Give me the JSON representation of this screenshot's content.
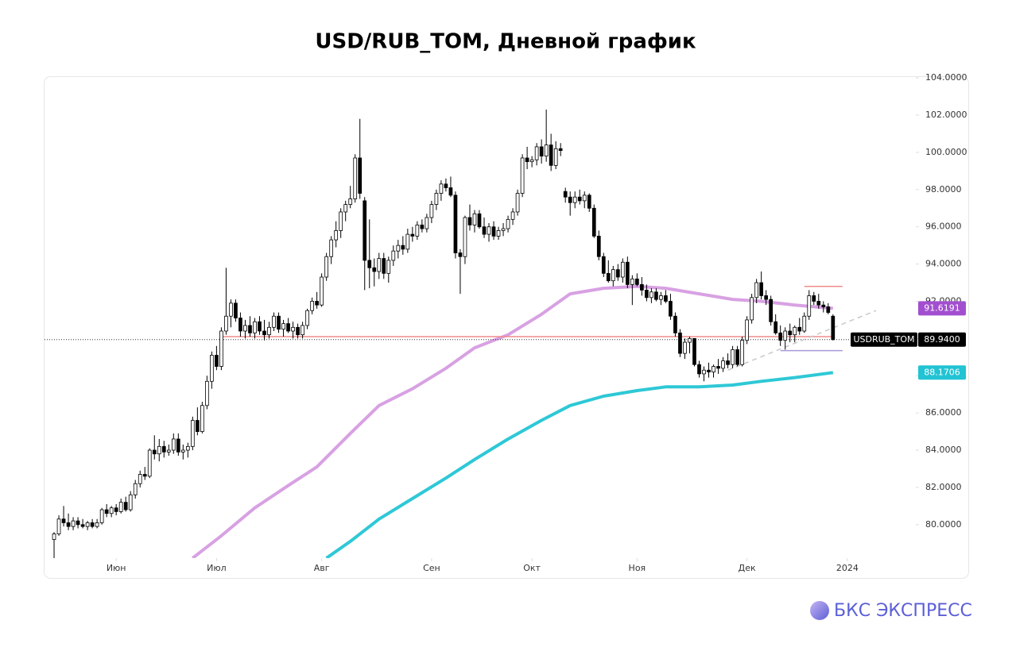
{
  "chart_data": {
    "type": "candlestick",
    "title": "USD/RUB_TOM, Дневной график",
    "logo": "БКС ЭКСПРЕСС",
    "xlim": [
      -2,
      180
    ],
    "ylim": [
      78.2,
      104.05
    ],
    "xticks": [
      {
        "value": 13,
        "label": "Июн"
      },
      {
        "value": 34,
        "label": "Июл"
      },
      {
        "value": 56,
        "label": "Авг"
      },
      {
        "value": 79,
        "label": "Сен"
      },
      {
        "value": 100,
        "label": "Окт"
      },
      {
        "value": 122,
        "label": "Ноя"
      },
      {
        "value": 145,
        "label": "Дек"
      },
      {
        "value": 166,
        "label": "2024"
      }
    ],
    "yticks": [
      {
        "value": 80,
        "label": "80.0000"
      },
      {
        "value": 82,
        "label": "82.0000"
      },
      {
        "value": 84,
        "label": "84.0000"
      },
      {
        "value": 86,
        "label": "86.0000"
      },
      {
        "value": 88,
        "label": "88.0000"
      },
      {
        "value": 90,
        "label": "90.0000"
      },
      {
        "value": 92,
        "label": "92.0000"
      },
      {
        "value": 94,
        "label": "94.0000"
      },
      {
        "value": 96,
        "label": "96.0000"
      },
      {
        "value": 98,
        "label": "98.0000"
      },
      {
        "value": 100,
        "label": "100.0000"
      },
      {
        "value": 102,
        "label": "102.0000"
      },
      {
        "value": 104,
        "label": "104.0000"
      }
    ],
    "up_color": "#ffffff",
    "down_color": "#000000",
    "candles": [
      [
        79.2,
        79.6,
        78.2,
        79.5
      ],
      [
        79.5,
        80.5,
        79.4,
        80.3
      ],
      [
        80.3,
        81.0,
        79.9,
        80.1
      ],
      [
        80.1,
        80.6,
        79.7,
        79.9
      ],
      [
        79.9,
        80.4,
        79.7,
        80.2
      ],
      [
        80.2,
        80.4,
        79.8,
        80.0
      ],
      [
        80.0,
        80.3,
        79.8,
        79.9
      ],
      [
        79.9,
        80.2,
        79.7,
        80.1
      ],
      [
        80.1,
        80.3,
        79.8,
        79.9
      ],
      [
        79.9,
        80.3,
        79.8,
        80.1
      ],
      [
        80.1,
        80.9,
        80.0,
        80.8
      ],
      [
        80.8,
        81.1,
        80.4,
        80.6
      ],
      [
        80.6,
        81.0,
        80.4,
        80.9
      ],
      [
        80.9,
        81.1,
        80.5,
        80.7
      ],
      [
        80.7,
        81.4,
        80.6,
        81.2
      ],
      [
        81.2,
        81.5,
        80.7,
        80.8
      ],
      [
        80.8,
        81.8,
        80.7,
        81.6
      ],
      [
        81.6,
        82.4,
        81.4,
        82.2
      ],
      [
        82.2,
        82.9,
        82.0,
        82.7
      ],
      [
        82.7,
        83.1,
        82.4,
        82.6
      ],
      [
        82.6,
        84.1,
        82.5,
        84.0
      ],
      [
        84.0,
        84.8,
        83.5,
        83.8
      ],
      [
        83.8,
        84.6,
        83.4,
        84.2
      ],
      [
        84.2,
        84.5,
        83.6,
        83.9
      ],
      [
        83.9,
        84.3,
        83.7,
        84.0
      ],
      [
        84.0,
        84.9,
        83.8,
        84.6
      ],
      [
        84.6,
        84.9,
        83.7,
        83.9
      ],
      [
        83.9,
        84.3,
        83.5,
        84.0
      ],
      [
        84.0,
        84.4,
        83.6,
        84.2
      ],
      [
        84.2,
        85.8,
        84.0,
        85.6
      ],
      [
        85.6,
        86.3,
        84.8,
        85.0
      ],
      [
        85.0,
        86.6,
        84.9,
        86.4
      ],
      [
        86.4,
        88.0,
        86.2,
        87.7
      ],
      [
        87.7,
        89.3,
        87.3,
        89.1
      ],
      [
        89.1,
        89.6,
        88.3,
        88.5
      ],
      [
        88.5,
        90.6,
        88.3,
        90.4
      ],
      [
        90.4,
        93.8,
        90.2,
        91.2
      ],
      [
        91.2,
        92.1,
        90.6,
        91.9
      ],
      [
        91.9,
        92.1,
        90.9,
        91.1
      ],
      [
        91.1,
        91.4,
        90.1,
        90.4
      ],
      [
        90.4,
        91.0,
        90.0,
        90.7
      ],
      [
        90.7,
        91.2,
        90.1,
        90.3
      ],
      [
        90.3,
        91.1,
        90.0,
        90.9
      ],
      [
        90.9,
        91.2,
        90.2,
        90.4
      ],
      [
        90.4,
        91.0,
        89.9,
        90.2
      ],
      [
        90.2,
        90.9,
        90.0,
        90.6
      ],
      [
        90.6,
        91.4,
        90.4,
        91.2
      ],
      [
        91.2,
        91.4,
        90.3,
        90.5
      ],
      [
        90.5,
        91.0,
        90.1,
        90.8
      ],
      [
        90.8,
        91.1,
        90.3,
        90.4
      ],
      [
        90.4,
        90.9,
        90.0,
        90.6
      ],
      [
        90.6,
        90.8,
        90.0,
        90.2
      ],
      [
        90.2,
        90.9,
        90.0,
        90.7
      ],
      [
        90.7,
        91.6,
        90.5,
        91.5
      ],
      [
        91.5,
        92.2,
        91.3,
        92.0
      ],
      [
        92.0,
        92.5,
        91.6,
        91.8
      ],
      [
        91.8,
        93.5,
        91.7,
        93.3
      ],
      [
        93.3,
        94.6,
        93.1,
        94.4
      ],
      [
        94.4,
        95.5,
        94.0,
        95.3
      ],
      [
        95.3,
        96.3,
        94.9,
        95.8
      ],
      [
        95.8,
        97.0,
        95.4,
        96.8
      ],
      [
        96.8,
        97.4,
        96.3,
        97.2
      ],
      [
        97.2,
        98.2,
        97.0,
        97.5
      ],
      [
        97.5,
        99.9,
        97.3,
        99.7
      ],
      [
        99.7,
        101.8,
        97.5,
        97.8
      ],
      [
        97.4,
        97.6,
        92.6,
        94.2
      ],
      [
        94.2,
        96.4,
        92.7,
        93.8
      ],
      [
        93.8,
        94.3,
        92.8,
        93.6
      ],
      [
        93.6,
        94.6,
        93.2,
        94.3
      ],
      [
        94.3,
        94.6,
        93.2,
        93.5
      ],
      [
        93.5,
        94.4,
        93.0,
        94.2
      ],
      [
        94.2,
        95.0,
        93.9,
        94.7
      ],
      [
        94.7,
        95.3,
        94.3,
        95.0
      ],
      [
        95.0,
        95.5,
        94.5,
        94.8
      ],
      [
        94.8,
        95.9,
        94.6,
        95.6
      ],
      [
        95.6,
        96.0,
        95.2,
        95.5
      ],
      [
        95.5,
        96.3,
        95.3,
        96.1
      ],
      [
        96.1,
        96.4,
        95.7,
        95.9
      ],
      [
        95.9,
        96.7,
        95.7,
        96.5
      ],
      [
        96.5,
        97.4,
        96.2,
        97.2
      ],
      [
        97.2,
        98.0,
        96.9,
        97.8
      ],
      [
        97.8,
        98.5,
        97.4,
        98.3
      ],
      [
        98.3,
        98.6,
        97.9,
        98.1
      ],
      [
        98.1,
        98.7,
        97.6,
        97.7
      ],
      [
        97.7,
        97.9,
        94.3,
        94.6
      ],
      [
        94.6,
        94.8,
        92.4,
        94.4
      ],
      [
        94.4,
        96.6,
        94.0,
        96.5
      ],
      [
        96.5,
        97.2,
        95.8,
        96.1
      ],
      [
        96.1,
        96.9,
        95.7,
        96.7
      ],
      [
        96.7,
        96.9,
        95.9,
        96.0
      ],
      [
        96.0,
        96.5,
        95.4,
        95.6
      ],
      [
        95.6,
        96.2,
        95.2,
        96.0
      ],
      [
        96.0,
        96.3,
        95.3,
        95.5
      ],
      [
        95.5,
        96.0,
        95.3,
        95.8
      ],
      [
        95.8,
        96.2,
        95.5,
        95.9
      ],
      [
        95.9,
        96.6,
        95.7,
        96.4
      ],
      [
        96.4,
        97.0,
        96.1,
        96.8
      ],
      [
        96.8,
        98.0,
        96.6,
        97.8
      ],
      [
        97.8,
        99.9,
        97.6,
        99.7
      ],
      [
        99.7,
        100.3,
        99.1,
        99.5
      ],
      [
        99.5,
        99.8,
        99.2,
        99.6
      ],
      [
        99.6,
        100.5,
        99.3,
        100.3
      ],
      [
        100.3,
        100.7,
        99.4,
        99.8
      ],
      [
        99.8,
        102.3,
        99.5,
        100.4
      ],
      [
        100.4,
        101.0,
        99.0,
        99.3
      ],
      [
        99.3,
        100.6,
        99.1,
        100.2
      ],
      [
        100.2,
        100.5,
        99.8,
        100.1
      ],
      [
        97.9,
        98.1,
        97.3,
        97.6
      ],
      [
        97.6,
        97.9,
        96.6,
        97.3
      ],
      [
        97.3,
        97.9,
        97.0,
        97.6
      ],
      [
        97.6,
        98.0,
        97.2,
        97.4
      ],
      [
        97.4,
        97.9,
        97.0,
        97.7
      ],
      [
        97.7,
        97.8,
        96.8,
        97.0
      ],
      [
        97.0,
        97.2,
        95.4,
        95.5
      ],
      [
        95.5,
        95.8,
        94.2,
        94.4
      ],
      [
        94.4,
        94.6,
        93.3,
        93.5
      ],
      [
        93.5,
        94.2,
        93.0,
        93.1
      ],
      [
        93.1,
        93.9,
        92.8,
        93.7
      ],
      [
        93.7,
        94.0,
        93.1,
        93.3
      ],
      [
        93.3,
        94.3,
        93.0,
        94.1
      ],
      [
        94.1,
        94.4,
        92.7,
        92.9
      ],
      [
        92.9,
        93.4,
        91.8,
        93.2
      ],
      [
        93.2,
        93.5,
        92.8,
        92.9
      ],
      [
        92.9,
        93.3,
        92.3,
        92.6
      ],
      [
        92.6,
        92.9,
        92.0,
        92.2
      ],
      [
        92.2,
        92.7,
        91.9,
        92.5
      ],
      [
        92.5,
        92.7,
        92.0,
        92.1
      ],
      [
        92.1,
        92.5,
        91.8,
        92.3
      ],
      [
        92.3,
        92.6,
        91.9,
        92.0
      ],
      [
        92.0,
        92.4,
        91.0,
        91.2
      ],
      [
        91.2,
        91.4,
        90.1,
        90.3
      ],
      [
        90.3,
        90.5,
        89.0,
        89.2
      ],
      [
        89.2,
        90.0,
        88.9,
        89.8
      ],
      [
        89.8,
        90.1,
        89.2,
        90.0
      ],
      [
        90.0,
        90.0,
        88.5,
        88.6
      ],
      [
        88.6,
        88.8,
        87.9,
        88.1
      ],
      [
        88.1,
        88.5,
        87.7,
        88.3
      ],
      [
        88.3,
        88.7,
        87.9,
        88.2
      ],
      [
        88.2,
        88.6,
        87.9,
        88.5
      ],
      [
        88.5,
        88.9,
        88.1,
        88.4
      ],
      [
        88.4,
        89.0,
        88.2,
        88.8
      ],
      [
        88.8,
        89.2,
        88.4,
        88.6
      ],
      [
        88.6,
        89.6,
        88.4,
        89.4
      ],
      [
        89.4,
        89.6,
        88.5,
        88.6
      ],
      [
        88.6,
        90.1,
        88.5,
        89.9
      ],
      [
        89.9,
        91.2,
        89.7,
        91.0
      ],
      [
        91.0,
        92.4,
        90.8,
        92.2
      ],
      [
        92.2,
        93.2,
        91.9,
        93.0
      ],
      [
        93.0,
        93.6,
        92.1,
        92.3
      ],
      [
        92.3,
        92.6,
        91.8,
        92.1
      ],
      [
        92.1,
        92.3,
        90.7,
        90.9
      ],
      [
        90.9,
        91.3,
        90.2,
        90.3
      ],
      [
        90.3,
        90.7,
        89.6,
        89.9
      ],
      [
        89.9,
        90.6,
        89.4,
        90.4
      ],
      [
        90.4,
        90.8,
        89.8,
        90.2
      ],
      [
        90.2,
        90.7,
        89.8,
        90.6
      ],
      [
        90.6,
        91.1,
        90.2,
        90.4
      ],
      [
        90.4,
        91.4,
        90.3,
        91.2
      ],
      [
        91.2,
        92.6,
        91.0,
        92.3
      ],
      [
        92.3,
        92.5,
        91.8,
        92.0
      ],
      [
        92.0,
        92.4,
        91.6,
        91.8
      ],
      [
        91.8,
        92.0,
        91.4,
        91.7
      ],
      [
        91.7,
        91.9,
        91.3,
        91.4
      ],
      [
        91.2,
        91.3,
        89.9,
        89.94
      ]
    ],
    "moving_averages": [
      {
        "color": "#d8a1e3",
        "x": [
          29,
          35,
          42,
          49,
          55,
          62,
          68,
          75,
          82,
          88,
          95,
          102,
          108,
          115,
          122,
          128,
          135,
          142,
          148,
          155,
          163
        ],
        "values": [
          78.2,
          79.4,
          80.9,
          82.1,
          83.1,
          84.9,
          86.4,
          87.3,
          88.4,
          89.5,
          90.2,
          91.3,
          92.4,
          92.7,
          92.8,
          92.7,
          92.4,
          92.1,
          92.0,
          91.8,
          91.62
        ]
      },
      {
        "color": "#2ec8d6",
        "x": [
          57,
          62,
          68,
          75,
          82,
          88,
          95,
          102,
          108,
          115,
          122,
          128,
          135,
          142,
          148,
          155,
          163
        ],
        "values": [
          78.2,
          79.1,
          80.3,
          81.4,
          82.5,
          83.5,
          84.6,
          85.6,
          86.4,
          86.9,
          87.2,
          87.4,
          87.4,
          87.5,
          87.7,
          87.9,
          88.17
        ]
      }
    ],
    "levels": [
      {
        "value": 90.1,
        "x": [
          35,
          163
        ],
        "color": "#f08c8c"
      },
      {
        "value": 92.8,
        "x": [
          157,
          165
        ],
        "color": "#f08c8c"
      },
      {
        "value": 89.35,
        "x": [
          152,
          165
        ],
        "color": "#a99ad6"
      }
    ],
    "trendline": {
      "x": [
        141,
        172
      ],
      "values": [
        88.3,
        91.5
      ],
      "color": "#c8c8c8"
    },
    "price_line": 89.94,
    "price_labels": [
      {
        "value": 91.6191,
        "label": "91.6191",
        "color": "#a24fcf"
      },
      {
        "value": 89.94,
        "label": "89.9400",
        "name": "USDRUB_TOM",
        "color": "#000000"
      },
      {
        "value": 88.1706,
        "label": "88.1706",
        "color": "#22c3d3"
      }
    ]
  }
}
